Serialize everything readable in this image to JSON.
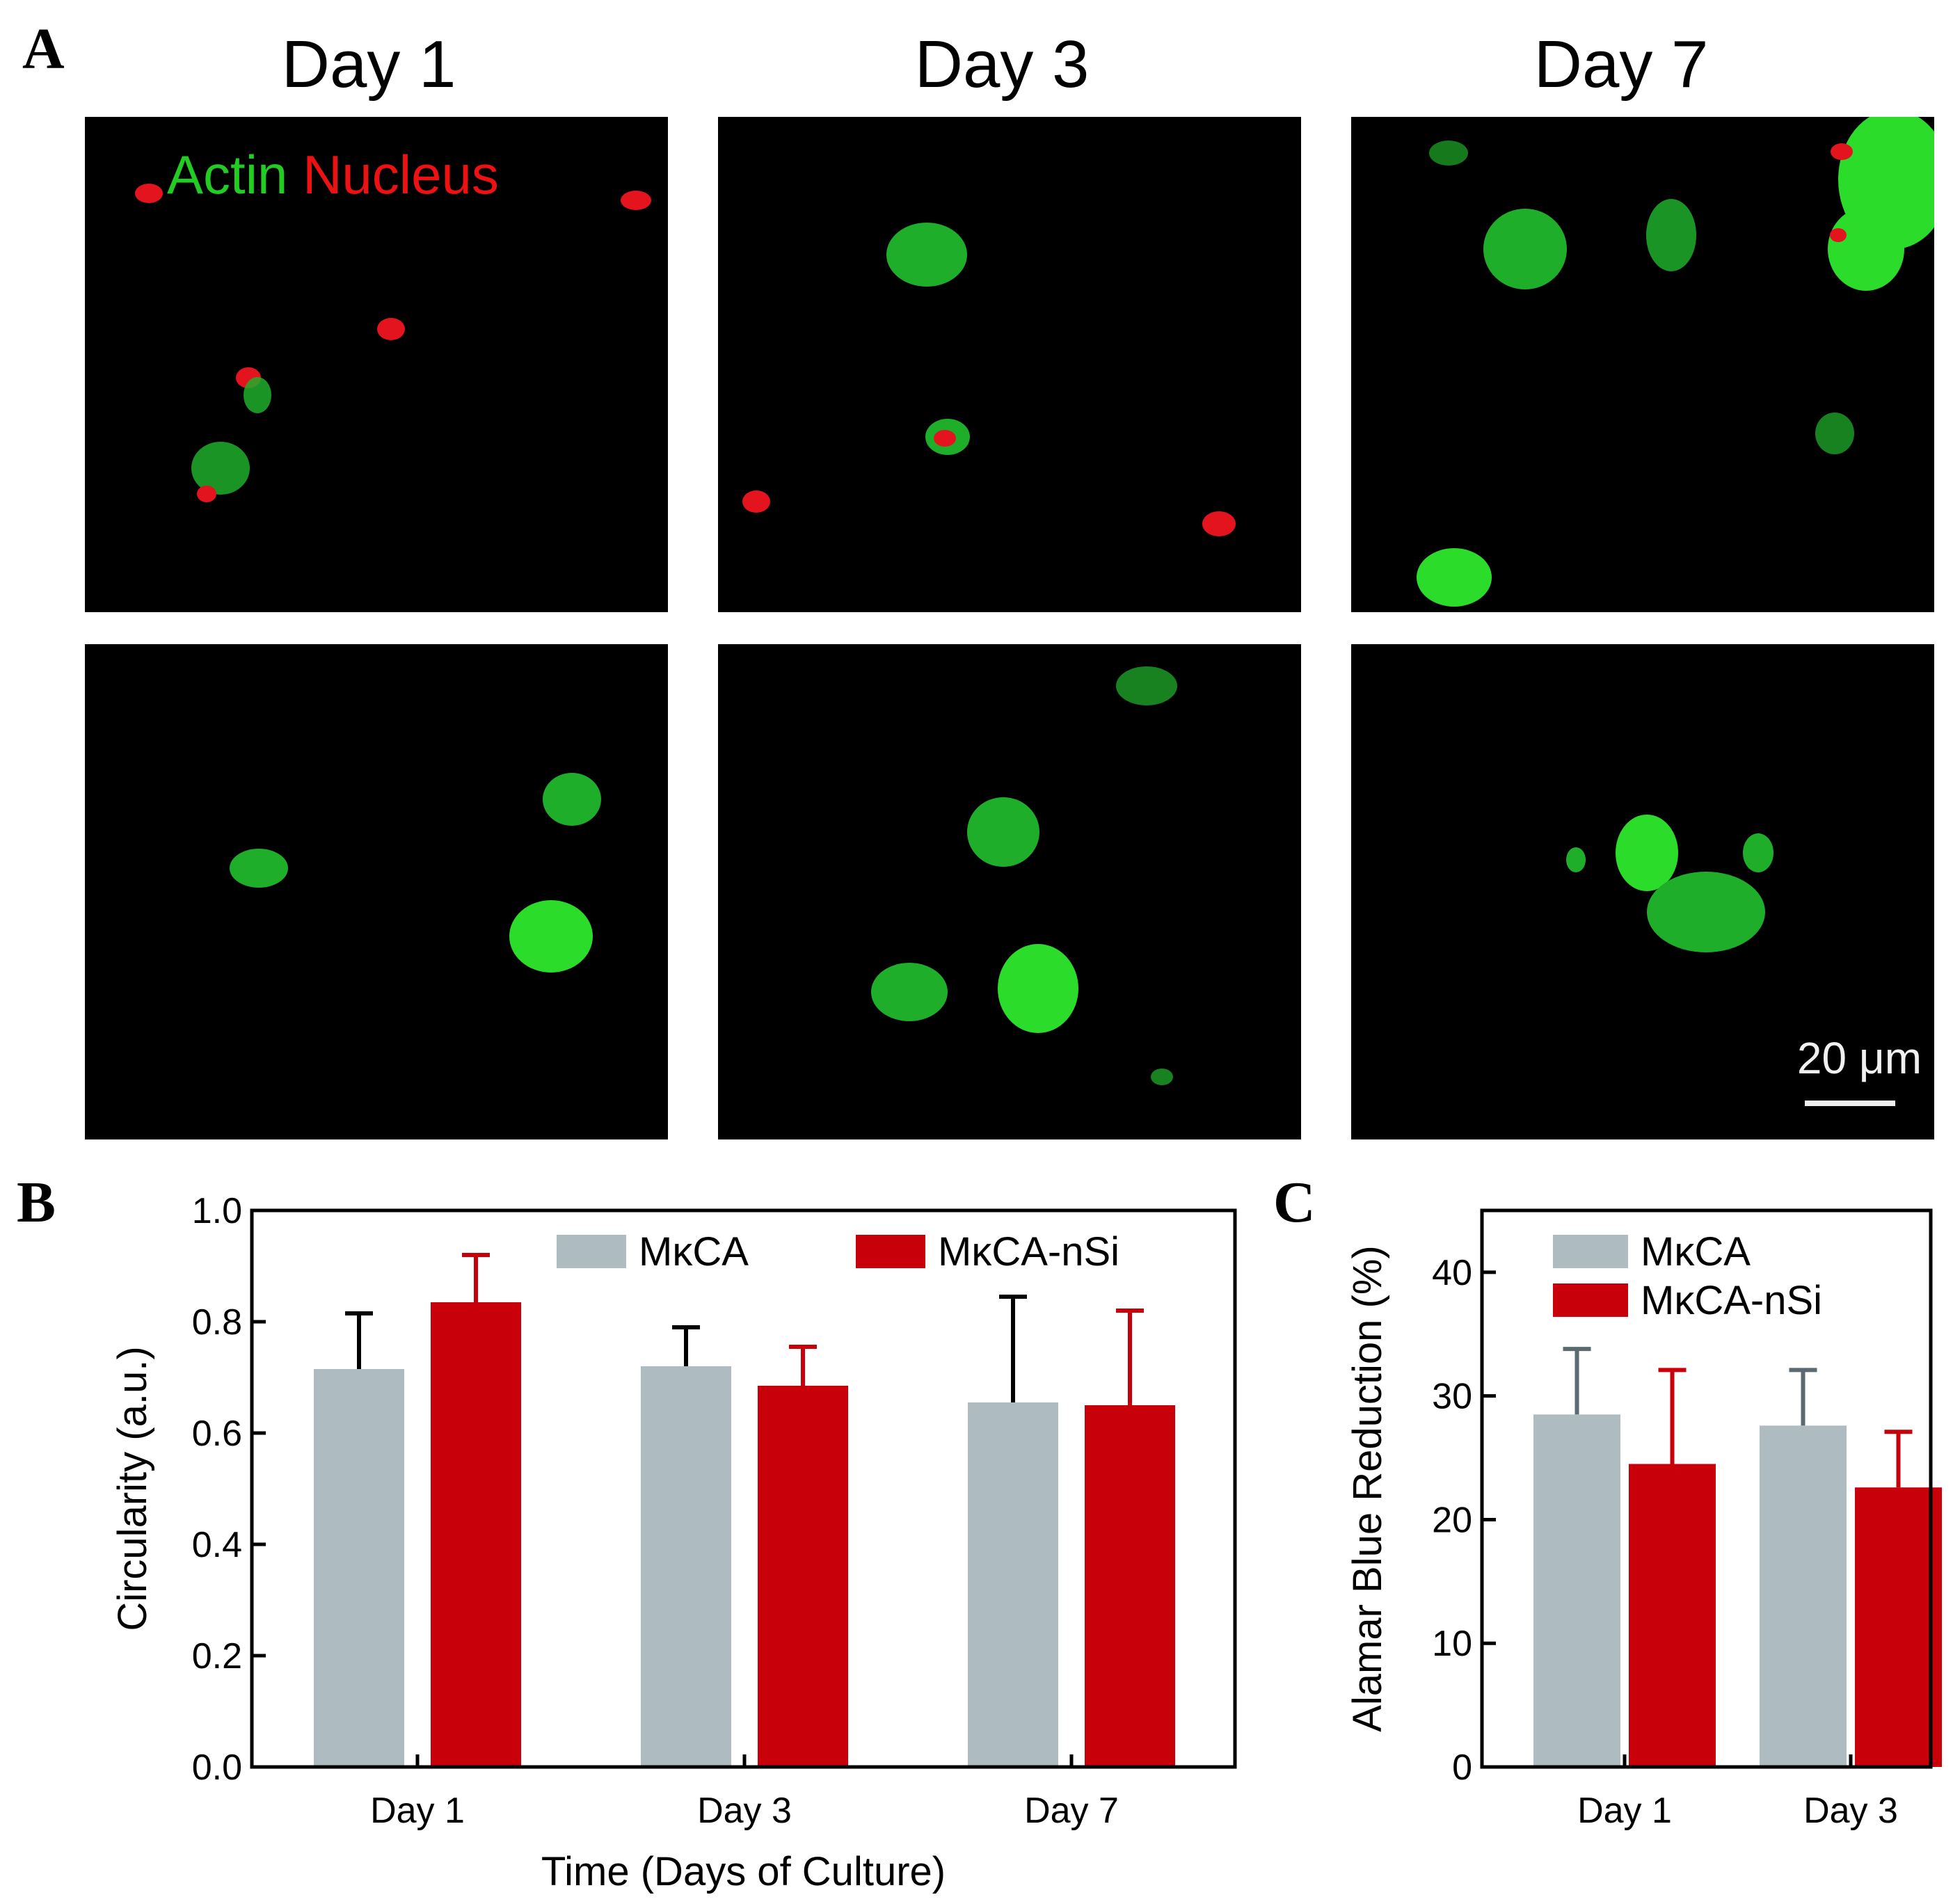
{
  "panels": {
    "a_label": "A",
    "b_label": "B",
    "c_label": "C"
  },
  "micrographs": {
    "columns": [
      "Day 1",
      "Day 3",
      "Day 7"
    ],
    "stain_actin": "Actin",
    "stain_nucleus": "Nucleus",
    "scale_bar": "20 μm",
    "colors": {
      "actin": "#22cc22",
      "nucleus": "#ee1111",
      "background": "#000000"
    }
  },
  "chart_data": [
    {
      "type": "bar",
      "panel": "B",
      "categories": [
        "Day 1",
        "Day 3",
        "Day 7"
      ],
      "series": [
        {
          "name": "MκCA",
          "values": [
            0.715,
            0.72,
            0.655
          ],
          "errors": [
            0.1,
            0.07,
            0.19
          ],
          "color": "#aebcc2"
        },
        {
          "name": "MκCA-nSi",
          "values": [
            0.835,
            0.685,
            0.65
          ],
          "errors": [
            0.085,
            0.07,
            0.17
          ],
          "color": "#c8000a"
        }
      ],
      "xlabel": "Time (Days of Culture)",
      "ylabel": "Circularity (a.u.)",
      "ylim": [
        0,
        1.0
      ],
      "yticks": [
        "0.0",
        "0.2",
        "0.4",
        "0.6",
        "0.8",
        "1.0"
      ],
      "legend": "top-right",
      "grid": false
    },
    {
      "type": "bar",
      "panel": "C",
      "categories": [
        "Day 1",
        "Day 3"
      ],
      "series": [
        {
          "name": "MκCA",
          "values": [
            28.5,
            27.6
          ],
          "errors": [
            5.3,
            4.5
          ],
          "color": "#aebcc2"
        },
        {
          "name": "MκCA-nSi",
          "values": [
            24.5,
            22.6
          ],
          "errors": [
            7.6,
            4.5
          ],
          "color": "#c8000a"
        }
      ],
      "ylabel": "Alamar Blue Reduction (%)",
      "ylim": [
        0,
        45
      ],
      "yticks": [
        "0",
        "10",
        "20",
        "30",
        "40"
      ],
      "legend": "top-right",
      "grid": false
    }
  ]
}
